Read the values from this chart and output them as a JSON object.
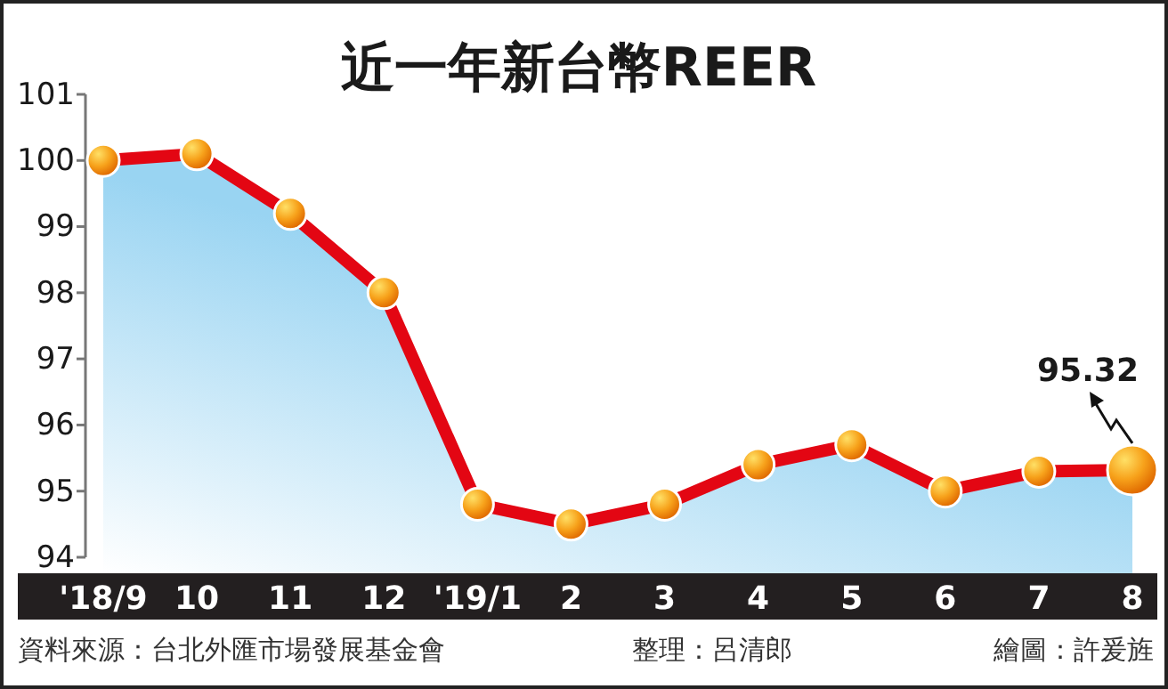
{
  "chart_data": {
    "type": "area",
    "title": "近一年新台幣REER",
    "categories": [
      "'18/9",
      "10",
      "11",
      "12",
      "'19/1",
      "2",
      "3",
      "4",
      "5",
      "6",
      "7",
      "8"
    ],
    "series": [
      {
        "color": "#e30613",
        "values": [
          100.0,
          100.1,
          99.2,
          98.0,
          94.8,
          94.5,
          94.8,
          95.4,
          95.7,
          95.0,
          95.3,
          95.32
        ]
      }
    ],
    "ylim": [
      94,
      101
    ],
    "yticks": [
      94,
      95,
      96,
      97,
      98,
      99,
      100,
      101
    ],
    "marker": "circle",
    "line_style": "solid",
    "annotations": [
      {
        "text": "95.32",
        "x": "8",
        "y": 95.32
      },
      "資料來源：台北外匯市場發展基金會",
      "整理：呂清郎",
      "繪圖：許爰旌"
    ]
  }
}
